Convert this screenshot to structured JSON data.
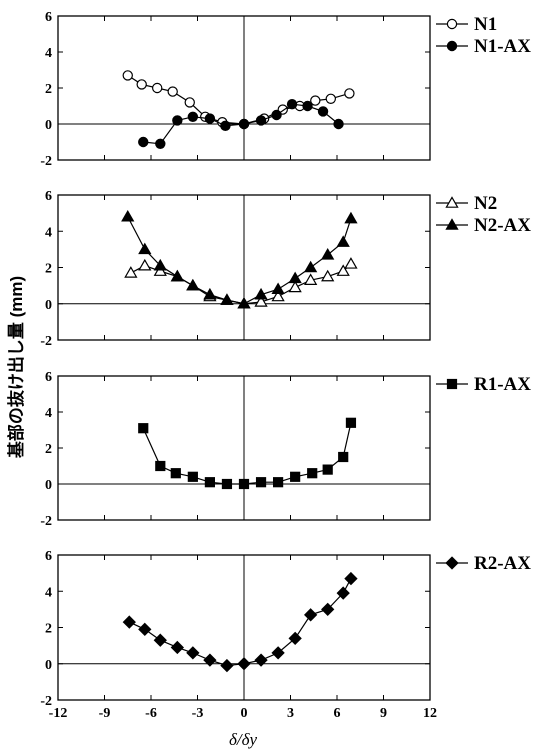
{
  "chart_data": [
    {
      "type": "line",
      "xlim": [
        -12,
        12
      ],
      "ylim": [
        -2,
        6
      ],
      "xticks": [
        -12,
        -9,
        -6,
        -3,
        0,
        3,
        6,
        9,
        12
      ],
      "yticks": [
        -2,
        0,
        2,
        4,
        6
      ],
      "legend_position": "right",
      "series": [
        {
          "name": "N1",
          "marker": "circle-open",
          "x": [
            -7.5,
            -6.6,
            -5.6,
            -4.6,
            -3.5,
            -2.5,
            -1.4,
            0,
            1.3,
            2.5,
            3.6,
            4.6,
            5.6,
            6.8
          ],
          "y": [
            2.7,
            2.2,
            2.0,
            1.8,
            1.2,
            0.4,
            0.1,
            0.0,
            0.3,
            0.8,
            1.0,
            1.3,
            1.4,
            1.7
          ]
        },
        {
          "name": "N1-AX",
          "marker": "circle-filled",
          "x": [
            -6.5,
            -5.4,
            -4.3,
            -3.3,
            -2.2,
            -1.2,
            0,
            1.1,
            2.1,
            3.1,
            4.1,
            5.1,
            6.1
          ],
          "y": [
            -1.0,
            -1.1,
            0.2,
            0.4,
            0.3,
            -0.1,
            0.0,
            0.2,
            0.5,
            1.1,
            1.0,
            0.7,
            0.0
          ]
        }
      ]
    },
    {
      "type": "line",
      "xlim": [
        -12,
        12
      ],
      "ylim": [
        -2,
        6
      ],
      "xticks": [
        -12,
        -9,
        -6,
        -3,
        0,
        3,
        6,
        9,
        12
      ],
      "yticks": [
        -2,
        0,
        2,
        4,
        6
      ],
      "legend_position": "right",
      "series": [
        {
          "name": "N2",
          "marker": "triangle-open",
          "x": [
            -7.3,
            -6.4,
            -5.4,
            -4.3,
            -3.3,
            -2.2,
            -1.1,
            0,
            1.1,
            2.2,
            3.3,
            4.3,
            5.4,
            6.4,
            6.9
          ],
          "y": [
            1.7,
            2.1,
            1.8,
            1.5,
            1.0,
            0.4,
            0.2,
            0.0,
            0.1,
            0.4,
            0.9,
            1.3,
            1.5,
            1.8,
            2.2
          ]
        },
        {
          "name": "N2-AX",
          "marker": "triangle-filled",
          "x": [
            -7.5,
            -6.4,
            -5.4,
            -4.3,
            -3.3,
            -2.2,
            -1.1,
            0,
            1.1,
            2.2,
            3.3,
            4.3,
            5.4,
            6.4,
            6.9
          ],
          "y": [
            4.8,
            3.0,
            2.1,
            1.5,
            1.0,
            0.5,
            0.2,
            0.0,
            0.5,
            0.8,
            1.4,
            2.0,
            2.7,
            3.4,
            4.7
          ]
        }
      ]
    },
    {
      "type": "line",
      "xlim": [
        -12,
        12
      ],
      "ylim": [
        -2,
        6
      ],
      "xticks": [
        -12,
        -9,
        -6,
        -3,
        0,
        3,
        6,
        9,
        12
      ],
      "yticks": [
        -2,
        0,
        2,
        4,
        6
      ],
      "legend_position": "right",
      "series": [
        {
          "name": "R1-AX",
          "marker": "square-filled",
          "x": [
            -6.5,
            -5.4,
            -4.4,
            -3.3,
            -2.2,
            -1.1,
            0,
            1.1,
            2.2,
            3.3,
            4.4,
            5.4,
            6.4,
            6.9
          ],
          "y": [
            3.1,
            1.0,
            0.6,
            0.4,
            0.1,
            0.0,
            0.0,
            0.1,
            0.1,
            0.4,
            0.6,
            0.8,
            1.5,
            3.4
          ]
        }
      ]
    },
    {
      "type": "line",
      "xlim": [
        -12,
        12
      ],
      "ylim": [
        -2,
        6
      ],
      "xticks": [
        -12,
        -9,
        -6,
        -3,
        0,
        3,
        6,
        9,
        12
      ],
      "yticks": [
        -2,
        0,
        2,
        4,
        6
      ],
      "legend_position": "right",
      "series": [
        {
          "name": "R2-AX",
          "marker": "diamond-filled",
          "x": [
            -7.4,
            -6.4,
            -5.4,
            -4.3,
            -3.3,
            -2.2,
            -1.1,
            0,
            1.1,
            2.2,
            3.3,
            4.3,
            5.4,
            6.4,
            6.9
          ],
          "y": [
            2.3,
            1.9,
            1.3,
            0.9,
            0.6,
            0.2,
            -0.1,
            0.0,
            0.2,
            0.6,
            1.4,
            2.7,
            3.0,
            3.9,
            4.7
          ]
        }
      ]
    }
  ],
  "ylabel": "基部の抜け出し量 (mm)",
  "xlabel": "δ/δy",
  "colors": {
    "ink": "#000000",
    "open_fill": "#ffffff"
  }
}
